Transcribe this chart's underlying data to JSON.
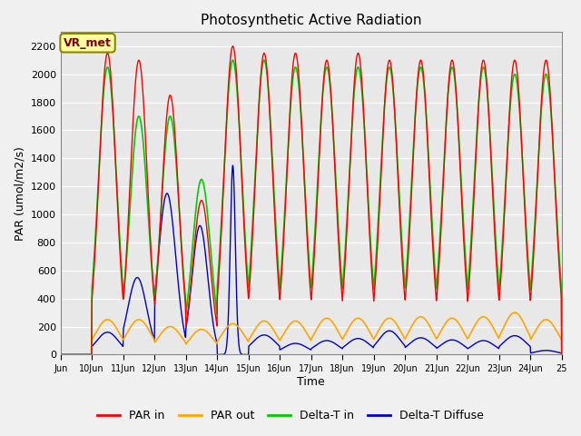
{
  "title": "Photosynthetic Active Radiation",
  "ylabel": "PAR (umol/m2/s)",
  "xlabel": "Time",
  "annotation": "VR_met",
  "xlim_start": 9,
  "xlim_end": 25,
  "ylim": [
    0,
    2300
  ],
  "yticks": [
    0,
    200,
    400,
    600,
    800,
    1000,
    1200,
    1400,
    1600,
    1800,
    2000,
    2200
  ],
  "xtick_positions": [
    9,
    10,
    11,
    12,
    13,
    14,
    15,
    16,
    17,
    18,
    19,
    20,
    21,
    22,
    23,
    24,
    25
  ],
  "xtick_labels": [
    "Jun",
    "10Jun",
    "11Jun",
    "12Jun",
    "13Jun",
    "14Jun",
    "15Jun",
    "16Jun",
    "17Jun",
    "18Jun",
    "19Jun",
    "20Jun",
    "21Jun",
    "22Jun",
    "23Jun",
    "24Jun",
    "25"
  ],
  "colors": {
    "PAR_in": "#ff0000",
    "PAR_out": "#ffa500",
    "Delta_T_in": "#00cc00",
    "Delta_T_Diffuse": "#0000cc"
  },
  "legend_labels": [
    "PAR in",
    "PAR out",
    "Delta-T in",
    "Delta-T Diffuse"
  ],
  "plot_bg_color": "#e8e8e8",
  "grid_color": "#ffffff",
  "peak_values_in": [
    2150,
    2100,
    1850,
    1100,
    2200,
    2150,
    2150,
    2100,
    2150,
    2100,
    2100,
    2100,
    2100,
    2100,
    2100
  ],
  "peak_values_out": [
    250,
    250,
    200,
    180,
    220,
    240,
    240,
    260,
    260,
    260,
    270,
    260,
    270,
    300,
    250
  ],
  "peak_values_dt_in": [
    2050,
    1700,
    1700,
    1250,
    2100,
    2100,
    2050,
    2050,
    2050,
    2050,
    2050,
    2050,
    2050,
    2000,
    2000
  ],
  "peak_values_diff": [
    160,
    550,
    1150,
    920,
    1350,
    140,
    80,
    100,
    115,
    170,
    120,
    105,
    100,
    135,
    30
  ],
  "widths_diff": [
    0.35,
    0.3,
    0.28,
    0.25,
    0.08,
    0.38,
    0.38,
    0.38,
    0.38,
    0.35,
    0.38,
    0.38,
    0.38,
    0.38,
    0.35
  ],
  "phase_diff": [
    0.0,
    -0.05,
    -0.1,
    -0.05,
    0.0,
    0.0,
    0.0,
    0.0,
    0.0,
    0.0,
    0.0,
    0.0,
    0.0,
    0.0,
    0.0
  ]
}
